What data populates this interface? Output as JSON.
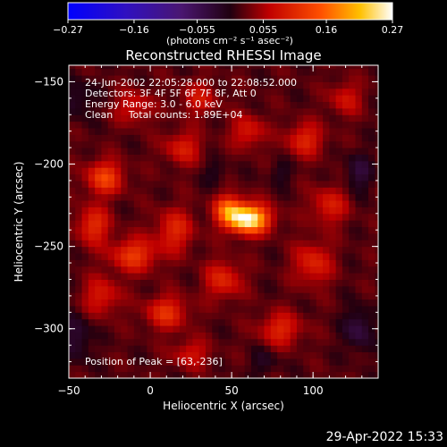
{
  "chart_data": {
    "type": "heatmap",
    "title": "Reconstructed RHESSI Image",
    "xlabel": "Heliocentric X (arcsec)",
    "ylabel": "Heliocentric Y (arcsec)",
    "xlim": [
      -50,
      140
    ],
    "ylim": [
      -330,
      -140
    ],
    "x_ticks": [
      -50,
      0,
      50,
      100
    ],
    "x_tick_labels": [
      "−50",
      "0",
      "50",
      "100"
    ],
    "y_ticks": [
      -150,
      -200,
      -250,
      -300
    ],
    "y_tick_labels": [
      "−150",
      "−200",
      "−250",
      "−300"
    ],
    "colorbar": {
      "min": -0.27,
      "max": 0.27,
      "tick_values": [
        -0.27,
        -0.16,
        -0.055,
        0.055,
        0.16,
        0.27
      ],
      "tick_labels": [
        "−0.27",
        "−0.16",
        "−0.055",
        "0.055",
        "0.16",
        "0.27"
      ],
      "unit_label": "(photons cm⁻² s⁻¹ asec⁻²)"
    },
    "info_lines": [
      "24-Jun-2002 22:05:28.000 to 22:08:52.000",
      "Detectors: 3F 4F 5F 6F 7F 8F, Att 0",
      "Energy Range: 3.0 - 6.0 keV",
      "Clean     Total counts: 1.89E+04"
    ],
    "peak_label": "Position of Peak = [63,-236]",
    "peak": {
      "x": 63,
      "y": -236,
      "value": 0.27
    },
    "blobs": [
      {
        "x": 60,
        "y": -233,
        "v": 0.25,
        "sx": 9,
        "sy": 6
      },
      {
        "x": 48,
        "y": -227,
        "v": 0.12,
        "sx": 6,
        "sy": 6
      },
      {
        "x": -28,
        "y": -208,
        "v": 0.11,
        "sx": 8,
        "sy": 7
      },
      {
        "x": -35,
        "y": -237,
        "v": 0.09,
        "sx": 7,
        "sy": 8
      },
      {
        "x": -10,
        "y": -255,
        "v": 0.1,
        "sx": 10,
        "sy": 7
      },
      {
        "x": 15,
        "y": -240,
        "v": 0.08,
        "sx": 8,
        "sy": 9
      },
      {
        "x": 10,
        "y": -290,
        "v": 0.09,
        "sx": 9,
        "sy": 7
      },
      {
        "x": -30,
        "y": -280,
        "v": 0.07,
        "sx": 8,
        "sy": 8
      },
      {
        "x": 45,
        "y": -270,
        "v": 0.08,
        "sx": 8,
        "sy": 8
      },
      {
        "x": 80,
        "y": -300,
        "v": 0.08,
        "sx": 9,
        "sy": 7
      },
      {
        "x": 100,
        "y": -260,
        "v": 0.08,
        "sx": 8,
        "sy": 9
      },
      {
        "x": 110,
        "y": -225,
        "v": 0.07,
        "sx": 8,
        "sy": 8
      },
      {
        "x": 95,
        "y": -185,
        "v": 0.08,
        "sx": 8,
        "sy": 7
      },
      {
        "x": 60,
        "y": -180,
        "v": 0.07,
        "sx": 7,
        "sy": 7
      },
      {
        "x": 20,
        "y": -190,
        "v": 0.07,
        "sx": 8,
        "sy": 7
      },
      {
        "x": -10,
        "y": -165,
        "v": 0.06,
        "sx": 8,
        "sy": 7
      },
      {
        "x": 30,
        "y": -160,
        "v": 0.06,
        "sx": 8,
        "sy": 7
      },
      {
        "x": 120,
        "y": -160,
        "v": 0.06,
        "sx": 7,
        "sy": 7
      },
      {
        "x": 25,
        "y": -315,
        "v": 0.06,
        "sx": 8,
        "sy": 6
      },
      {
        "x": -45,
        "y": -305,
        "v": -0.05,
        "sx": 6,
        "sy": 10
      },
      {
        "x": -45,
        "y": -160,
        "v": -0.04,
        "sx": 7,
        "sy": 8
      },
      {
        "x": 128,
        "y": -300,
        "v": -0.06,
        "sx": 6,
        "sy": 9
      },
      {
        "x": 128,
        "y": -205,
        "v": -0.05,
        "sx": 6,
        "sy": 8
      },
      {
        "x": 70,
        "y": -320,
        "v": -0.03,
        "sx": 6,
        "sy": 6
      },
      {
        "x": 40,
        "y": -205,
        "v": -0.03,
        "sx": 5,
        "sy": 5
      },
      {
        "x": 80,
        "y": -205,
        "v": -0.03,
        "sx": 5,
        "sy": 5
      }
    ]
  },
  "timestamp": "29-Apr-2022 15:33"
}
